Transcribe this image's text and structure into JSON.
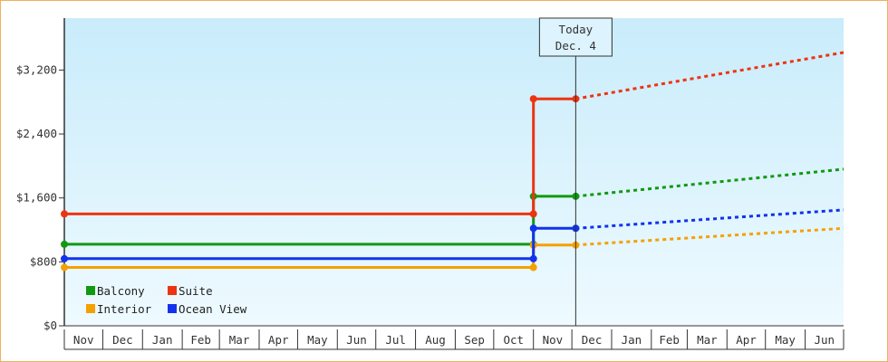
{
  "chart_data": {
    "type": "line",
    "title": "",
    "xlabel": "",
    "ylabel": "",
    "y_ticks": [
      "$0",
      "$800",
      "$1,600",
      "$2,400",
      "$3,200"
    ],
    "ylim": [
      0,
      3850
    ],
    "months": [
      "Nov",
      "Dec",
      "Jan",
      "Feb",
      "Mar",
      "Apr",
      "May",
      "Jun",
      "Jul",
      "Aug",
      "Sep",
      "Oct",
      "Nov",
      "Dec",
      "Jan",
      "Feb",
      "Mar",
      "Apr",
      "May",
      "Jun"
    ],
    "x_range": [
      "2011-11-01",
      "2013-07-01"
    ],
    "today": {
      "line1": "Today",
      "line2": "Dec. 4",
      "date": "2012-12-04"
    },
    "legend_position": "bottom-left",
    "series": [
      {
        "name": "Balcony",
        "color": "#119911",
        "history": [
          {
            "x": "2011-11-01",
            "y": 1020
          },
          {
            "x": "2012-11-01",
            "y": 1020
          },
          {
            "x": "2012-11-01",
            "y": 1620
          },
          {
            "x": "2012-12-04",
            "y": 1620
          }
        ],
        "forecast": [
          {
            "x": "2012-12-04",
            "y": 1620
          },
          {
            "x": "2013-07-01",
            "y": 1960
          }
        ]
      },
      {
        "name": "Suite",
        "color": "#ee3311",
        "history": [
          {
            "x": "2011-11-01",
            "y": 1400
          },
          {
            "x": "2012-11-01",
            "y": 1400
          },
          {
            "x": "2012-11-01",
            "y": 2840
          },
          {
            "x": "2012-12-04",
            "y": 2840
          }
        ],
        "forecast": [
          {
            "x": "2012-12-04",
            "y": 2840
          },
          {
            "x": "2013-07-01",
            "y": 3420
          }
        ]
      },
      {
        "name": "Interior",
        "color": "#f5a000",
        "history": [
          {
            "x": "2011-11-01",
            "y": 730
          },
          {
            "x": "2012-11-01",
            "y": 730
          },
          {
            "x": "2012-11-01",
            "y": 1010
          },
          {
            "x": "2012-12-04",
            "y": 1010
          }
        ],
        "forecast": [
          {
            "x": "2012-12-04",
            "y": 1010
          },
          {
            "x": "2013-07-01",
            "y": 1220
          }
        ]
      },
      {
        "name": "Ocean View",
        "color": "#1133ee",
        "history": [
          {
            "x": "2011-11-01",
            "y": 840
          },
          {
            "x": "2012-11-01",
            "y": 840
          },
          {
            "x": "2012-11-01",
            "y": 1220
          },
          {
            "x": "2012-12-04",
            "y": 1220
          }
        ],
        "forecast": [
          {
            "x": "2012-12-04",
            "y": 1220
          },
          {
            "x": "2013-07-01",
            "y": 1450
          }
        ]
      }
    ],
    "colors": {
      "background_top": "#c9ecfb",
      "background_bottom": "#eefaff",
      "frame_border": "#f0b060",
      "axis": "#333333"
    }
  }
}
